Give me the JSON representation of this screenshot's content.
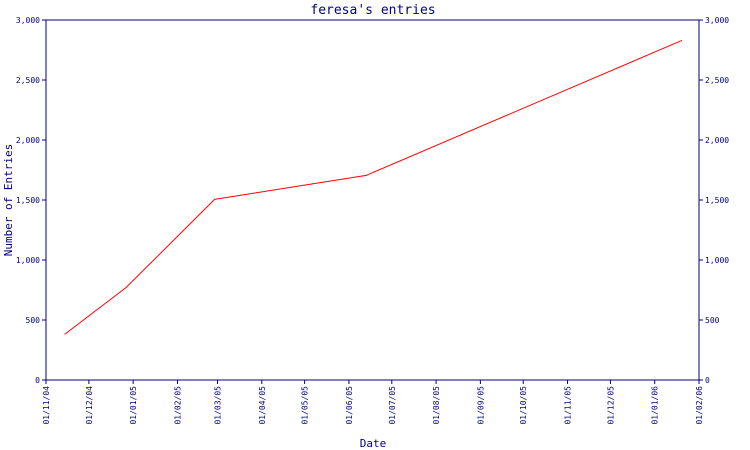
{
  "chart_data": {
    "type": "line",
    "title": "feresa's entries",
    "xlabel": "Date",
    "ylabel": "Number of Entries",
    "ylim": [
      0,
      3000
    ],
    "xlim": [
      "2004-11-01",
      "2006-02-01"
    ],
    "yticks": [
      {
        "value": 0,
        "label": "0"
      },
      {
        "value": 500,
        "label": "500"
      },
      {
        "value": 1000,
        "label": "1,000"
      },
      {
        "value": 1500,
        "label": "1,500"
      },
      {
        "value": 2000,
        "label": "2,000"
      },
      {
        "value": 2500,
        "label": "2,500"
      },
      {
        "value": 3000,
        "label": "3,000"
      }
    ],
    "xticks": [
      {
        "value": "2004-11-01",
        "label": "01/11/04"
      },
      {
        "value": "2004-12-01",
        "label": "01/12/04"
      },
      {
        "value": "2005-01-01",
        "label": "01/01/05"
      },
      {
        "value": "2005-02-01",
        "label": "01/02/05"
      },
      {
        "value": "2005-03-01",
        "label": "01/03/05"
      },
      {
        "value": "2005-04-01",
        "label": "01/04/05"
      },
      {
        "value": "2005-05-01",
        "label": "01/05/05"
      },
      {
        "value": "2005-06-01",
        "label": "01/06/05"
      },
      {
        "value": "2005-07-01",
        "label": "01/07/05"
      },
      {
        "value": "2005-08-01",
        "label": "01/08/05"
      },
      {
        "value": "2005-09-01",
        "label": "01/09/05"
      },
      {
        "value": "2005-10-01",
        "label": "01/10/05"
      },
      {
        "value": "2005-11-01",
        "label": "01/11/05"
      },
      {
        "value": "2005-12-01",
        "label": "01/12/05"
      },
      {
        "value": "2006-01-01",
        "label": "01/01/06"
      },
      {
        "value": "2006-02-01",
        "label": "01/02/06"
      }
    ],
    "grid": false,
    "series": [
      {
        "color": "#ff0000",
        "x": [
          "2004-11-14",
          "2004-12-27",
          "2005-02-27",
          "2005-06-13",
          "2006-01-20"
        ],
        "y": [
          380,
          770,
          1505,
          1705,
          2830
        ]
      }
    ],
    "axis_color": "#000080",
    "right_axis_mirrors_left": true
  }
}
